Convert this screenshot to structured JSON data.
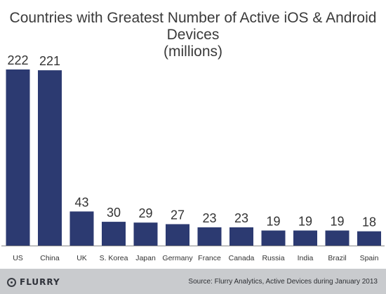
{
  "chart_data": {
    "type": "bar",
    "title": "Countries with Greatest Number of Active iOS & Android Devices",
    "subtitle": "(millions)",
    "categories": [
      "US",
      "China",
      "UK",
      "S. Korea",
      "Japan",
      "Germany",
      "France",
      "Canada",
      "Russia",
      "India",
      "Brazil",
      "Spain"
    ],
    "values": [
      222,
      221,
      43,
      30,
      29,
      27,
      23,
      23,
      19,
      19,
      19,
      18
    ],
    "ylim": [
      0,
      222
    ],
    "grid": false,
    "bar_color": "#2c3a71"
  },
  "footer": {
    "logo_text": "FLURRY",
    "source": "Source: Flurry Analytics, Active Devices during January 2013"
  }
}
